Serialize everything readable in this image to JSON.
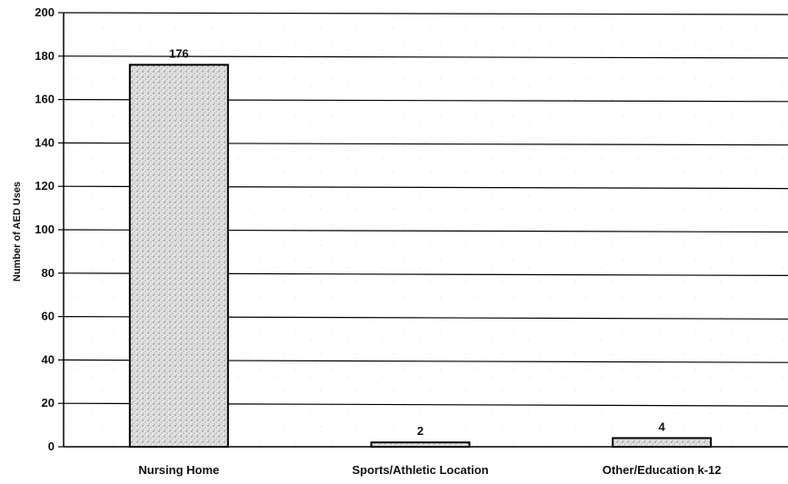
{
  "chart_data": {
    "type": "bar",
    "title": "",
    "xlabel": "",
    "ylabel": "Number of AED Uses",
    "categories": [
      "Nursing Home",
      "Sports/Athletic Location",
      "Other/Education k-12"
    ],
    "values": [
      176,
      2,
      4
    ],
    "data_labels": [
      "176",
      "2",
      "4"
    ],
    "ylim": [
      0,
      200
    ],
    "yticks": [
      0,
      20,
      40,
      60,
      80,
      100,
      120,
      140,
      160,
      180,
      200
    ],
    "grid": true,
    "legend": "none",
    "colors": {
      "bar_fill": "#d9d9d9",
      "bar_stroke": "#000000",
      "gridline": "#000000",
      "text": "#111111"
    }
  }
}
